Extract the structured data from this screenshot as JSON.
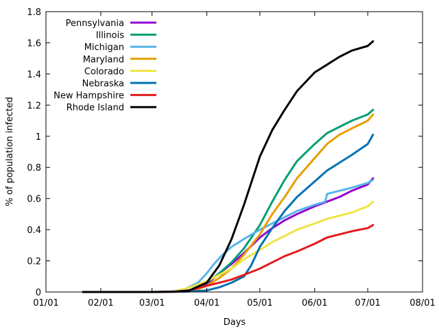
{
  "chart_data": {
    "type": "line",
    "xlabel": "Days",
    "ylabel": "% of population infected",
    "x_ticks": [
      "01/01",
      "02/01",
      "03/01",
      "04/01",
      "05/01",
      "06/01",
      "07/01",
      "08/01"
    ],
    "y_ticks": [
      "0",
      "0.2",
      "0.4",
      "0.6",
      "0.8",
      "1",
      "1.2",
      "1.4",
      "1.6",
      "1.8"
    ],
    "xlim": [
      "2020-01-01",
      "2020-08-01"
    ],
    "ylim": [
      0,
      1.8
    ],
    "legend_position": "top-left",
    "series": [
      {
        "name": "Pennsylvania",
        "color": "#9400d3",
        "points": [
          [
            "2020-01-22",
            0
          ],
          [
            "2020-03-05",
            0
          ],
          [
            "2020-03-15",
            0.002
          ],
          [
            "2020-03-22",
            0.01
          ],
          [
            "2020-04-01",
            0.05
          ],
          [
            "2020-04-08",
            0.12
          ],
          [
            "2020-04-15",
            0.18
          ],
          [
            "2020-04-22",
            0.25
          ],
          [
            "2020-05-01",
            0.35
          ],
          [
            "2020-05-08",
            0.41
          ],
          [
            "2020-05-15",
            0.46
          ],
          [
            "2020-05-22",
            0.5
          ],
          [
            "2020-06-01",
            0.55
          ],
          [
            "2020-06-08",
            0.58
          ],
          [
            "2020-06-15",
            0.61
          ],
          [
            "2020-06-22",
            0.65
          ],
          [
            "2020-07-01",
            0.69
          ],
          [
            "2020-07-04",
            0.73
          ]
        ]
      },
      {
        "name": "Illinois",
        "color": "#009e73",
        "points": [
          [
            "2020-01-22",
            0
          ],
          [
            "2020-03-05",
            0
          ],
          [
            "2020-03-15",
            0.002
          ],
          [
            "2020-03-22",
            0.008
          ],
          [
            "2020-04-01",
            0.06
          ],
          [
            "2020-04-08",
            0.12
          ],
          [
            "2020-04-15",
            0.19
          ],
          [
            "2020-04-22",
            0.28
          ],
          [
            "2020-05-01",
            0.43
          ],
          [
            "2020-05-08",
            0.58
          ],
          [
            "2020-05-15",
            0.72
          ],
          [
            "2020-05-22",
            0.84
          ],
          [
            "2020-06-01",
            0.95
          ],
          [
            "2020-06-08",
            1.02
          ],
          [
            "2020-06-15",
            1.06
          ],
          [
            "2020-06-22",
            1.1
          ],
          [
            "2020-07-01",
            1.14
          ],
          [
            "2020-07-04",
            1.17
          ]
        ]
      },
      {
        "name": "Michigan",
        "color": "#56b4e9",
        "points": [
          [
            "2020-01-22",
            0
          ],
          [
            "2020-03-05",
            0
          ],
          [
            "2020-03-12",
            0.002
          ],
          [
            "2020-03-20",
            0.02
          ],
          [
            "2020-03-27",
            0.06
          ],
          [
            "2020-04-01",
            0.12
          ],
          [
            "2020-04-05",
            0.18
          ],
          [
            "2020-04-10",
            0.24
          ],
          [
            "2020-04-15",
            0.29
          ],
          [
            "2020-04-22",
            0.34
          ],
          [
            "2020-05-01",
            0.4
          ],
          [
            "2020-05-08",
            0.44
          ],
          [
            "2020-05-15",
            0.48
          ],
          [
            "2020-05-22",
            0.52
          ],
          [
            "2020-06-01",
            0.56
          ],
          [
            "2020-06-07",
            0.58
          ],
          [
            "2020-06-08",
            0.63
          ],
          [
            "2020-06-15",
            0.65
          ],
          [
            "2020-06-22",
            0.67
          ],
          [
            "2020-07-01",
            0.7
          ],
          [
            "2020-07-04",
            0.72
          ]
        ]
      },
      {
        "name": "Maryland",
        "color": "#e69f00",
        "points": [
          [
            "2020-01-22",
            0
          ],
          [
            "2020-03-08",
            0
          ],
          [
            "2020-03-18",
            0.003
          ],
          [
            "2020-03-25",
            0.01
          ],
          [
            "2020-04-01",
            0.04
          ],
          [
            "2020-04-08",
            0.09
          ],
          [
            "2020-04-15",
            0.15
          ],
          [
            "2020-04-22",
            0.24
          ],
          [
            "2020-05-01",
            0.37
          ],
          [
            "2020-05-08",
            0.5
          ],
          [
            "2020-05-15",
            0.61
          ],
          [
            "2020-05-22",
            0.73
          ],
          [
            "2020-06-01",
            0.86
          ],
          [
            "2020-06-08",
            0.95
          ],
          [
            "2020-06-15",
            1.01
          ],
          [
            "2020-06-22",
            1.05
          ],
          [
            "2020-07-01",
            1.1
          ],
          [
            "2020-07-04",
            1.14
          ]
        ]
      },
      {
        "name": "Colorado",
        "color": "#f0e442",
        "points": [
          [
            "2020-01-22",
            0
          ],
          [
            "2020-03-05",
            0
          ],
          [
            "2020-03-12",
            0.002
          ],
          [
            "2020-03-20",
            0.02
          ],
          [
            "2020-04-01",
            0.07
          ],
          [
            "2020-04-08",
            0.11
          ],
          [
            "2020-04-15",
            0.15
          ],
          [
            "2020-04-22",
            0.21
          ],
          [
            "2020-05-01",
            0.27
          ],
          [
            "2020-05-08",
            0.32
          ],
          [
            "2020-05-15",
            0.36
          ],
          [
            "2020-05-22",
            0.4
          ],
          [
            "2020-06-01",
            0.44
          ],
          [
            "2020-06-08",
            0.47
          ],
          [
            "2020-06-15",
            0.49
          ],
          [
            "2020-06-22",
            0.51
          ],
          [
            "2020-07-01",
            0.55
          ],
          [
            "2020-07-04",
            0.58
          ]
        ]
      },
      {
        "name": "Nebraska",
        "color": "#0072b2",
        "points": [
          [
            "2020-01-22",
            0
          ],
          [
            "2020-03-08",
            0
          ],
          [
            "2020-03-20",
            0.002
          ],
          [
            "2020-04-01",
            0.01
          ],
          [
            "2020-04-08",
            0.03
          ],
          [
            "2020-04-15",
            0.06
          ],
          [
            "2020-04-22",
            0.1
          ],
          [
            "2020-04-26",
            0.17
          ],
          [
            "2020-05-01",
            0.29
          ],
          [
            "2020-05-08",
            0.41
          ],
          [
            "2020-05-15",
            0.52
          ],
          [
            "2020-05-22",
            0.61
          ],
          [
            "2020-06-01",
            0.71
          ],
          [
            "2020-06-08",
            0.78
          ],
          [
            "2020-06-15",
            0.83
          ],
          [
            "2020-06-22",
            0.88
          ],
          [
            "2020-07-01",
            0.95
          ],
          [
            "2020-07-04",
            1.01
          ]
        ]
      },
      {
        "name": "New Hampshire",
        "color": "#e41a1c",
        "points": [
          [
            "2020-01-22",
            0
          ],
          [
            "2020-03-05",
            0
          ],
          [
            "2020-03-15",
            0.002
          ],
          [
            "2020-03-22",
            0.01
          ],
          [
            "2020-04-01",
            0.04
          ],
          [
            "2020-04-08",
            0.06
          ],
          [
            "2020-04-15",
            0.08
          ],
          [
            "2020-04-22",
            0.11
          ],
          [
            "2020-05-01",
            0.15
          ],
          [
            "2020-05-08",
            0.19
          ],
          [
            "2020-05-15",
            0.23
          ],
          [
            "2020-05-22",
            0.26
          ],
          [
            "2020-06-01",
            0.31
          ],
          [
            "2020-06-08",
            0.35
          ],
          [
            "2020-06-15",
            0.37
          ],
          [
            "2020-06-22",
            0.39
          ],
          [
            "2020-07-01",
            0.41
          ],
          [
            "2020-07-04",
            0.43
          ]
        ]
      },
      {
        "name": "Rhode Island",
        "color": "#000000",
        "points": [
          [
            "2020-01-22",
            0
          ],
          [
            "2020-03-01",
            0
          ],
          [
            "2020-03-15",
            0.003
          ],
          [
            "2020-03-22",
            0.01
          ],
          [
            "2020-04-01",
            0.06
          ],
          [
            "2020-04-08",
            0.17
          ],
          [
            "2020-04-15",
            0.34
          ],
          [
            "2020-04-22",
            0.56
          ],
          [
            "2020-05-01",
            0.87
          ],
          [
            "2020-05-08",
            1.04
          ],
          [
            "2020-05-15",
            1.17
          ],
          [
            "2020-05-22",
            1.29
          ],
          [
            "2020-06-01",
            1.41
          ],
          [
            "2020-06-08",
            1.46
          ],
          [
            "2020-06-15",
            1.51
          ],
          [
            "2020-06-22",
            1.55
          ],
          [
            "2020-07-01",
            1.58
          ],
          [
            "2020-07-04",
            1.61
          ]
        ]
      }
    ]
  }
}
